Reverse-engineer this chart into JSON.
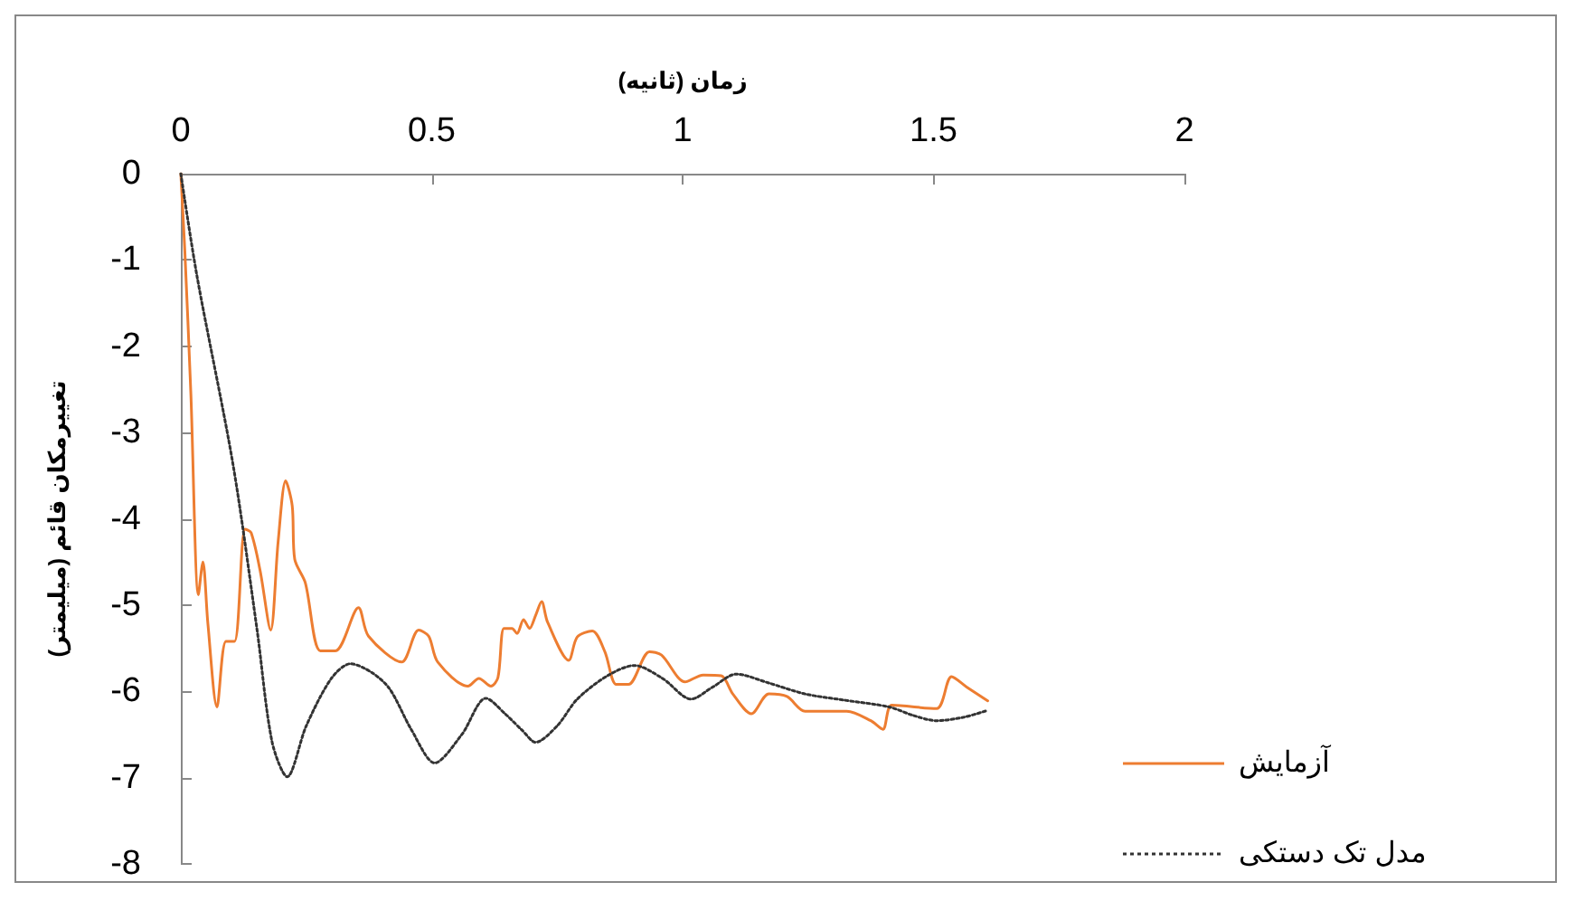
{
  "chart_data": {
    "type": "line",
    "xlabel": "زمان (ثانیه)",
    "ylabel": "تغییرمکان قائم (میلیمتر)",
    "xlim": [
      0,
      2
    ],
    "xticks": [
      0,
      0.5,
      1,
      1.5,
      2
    ],
    "ylim": [
      -8,
      0
    ],
    "yticks": [
      -8,
      -7,
      -6,
      -5,
      -4,
      -3,
      -2,
      -1,
      0
    ],
    "grid": false,
    "legend": "right",
    "marker": "none",
    "series": [
      {
        "name": "آزمایش",
        "color": "#ed7d31",
        "line_style": "solid",
        "x": [
          0,
          0.008,
          0.02,
          0.035,
          0.044,
          0.054,
          0.072,
          0.09,
          0.107,
          0.128,
          0.14,
          0.158,
          0.179,
          0.194,
          0.209,
          0.222,
          0.227,
          0.248,
          0.278,
          0.308,
          0.354,
          0.374,
          0.44,
          0.474,
          0.494,
          0.512,
          0.572,
          0.594,
          0.618,
          0.632,
          0.644,
          0.66,
          0.67,
          0.683,
          0.695,
          0.707,
          0.719,
          0.731,
          0.773,
          0.79,
          0.82,
          0.845,
          0.868,
          0.892,
          0.934,
          0.958,
          1.005,
          1.041,
          1.077,
          1.1,
          1.137,
          1.172,
          1.208,
          1.244,
          1.327,
          1.375,
          1.399,
          1.417,
          1.506,
          1.536,
          1.566,
          1.608
        ],
        "values": [
          0,
          -0.9,
          -2.55,
          -4.88,
          -4.5,
          -5.22,
          -6.18,
          -5.42,
          -5.42,
          -4.12,
          -4.16,
          -4.6,
          -5.29,
          -4.26,
          -3.56,
          -3.85,
          -4.47,
          -4.74,
          -5.53,
          -5.53,
          -5.03,
          -5.36,
          -5.66,
          -5.29,
          -5.36,
          -5.66,
          -5.94,
          -5.85,
          -5.94,
          -5.84,
          -5.27,
          -5.27,
          -5.33,
          -5.17,
          -5.27,
          -5.12,
          -4.96,
          -5.2,
          -5.64,
          -5.37,
          -5.3,
          -5.54,
          -5.92,
          -5.92,
          -5.54,
          -5.58,
          -5.89,
          -5.81,
          -5.82,
          -6.03,
          -6.26,
          -6.03,
          -6.06,
          -6.23,
          -6.23,
          -6.34,
          -6.44,
          -6.16,
          -6.2,
          -5.83,
          -5.95,
          -6.11
        ]
      },
      {
        "name": "مدل تک دستکی",
        "color": "#333333",
        "line_style": "dotted",
        "x": [
          0,
          0.032,
          0.104,
          0.152,
          0.182,
          0.212,
          0.25,
          0.3,
          0.338,
          0.38,
          0.416,
          0.46,
          0.506,
          0.56,
          0.608,
          0.648,
          0.68,
          0.707,
          0.75,
          0.79,
          0.85,
          0.904,
          0.96,
          1.017,
          1.06,
          1.107,
          1.17,
          1.244,
          1.32,
          1.411,
          1.46,
          1.506,
          1.56,
          1.608
        ],
        "values": [
          0,
          -1.18,
          -3.37,
          -5.29,
          -6.59,
          -6.99,
          -6.4,
          -5.85,
          -5.68,
          -5.78,
          -5.97,
          -6.45,
          -6.83,
          -6.5,
          -6.08,
          -6.27,
          -6.45,
          -6.59,
          -6.4,
          -6.09,
          -5.82,
          -5.7,
          -5.85,
          -6.09,
          -5.95,
          -5.8,
          -5.9,
          -6.03,
          -6.1,
          -6.18,
          -6.28,
          -6.34,
          -6.3,
          -6.22
        ]
      }
    ]
  }
}
